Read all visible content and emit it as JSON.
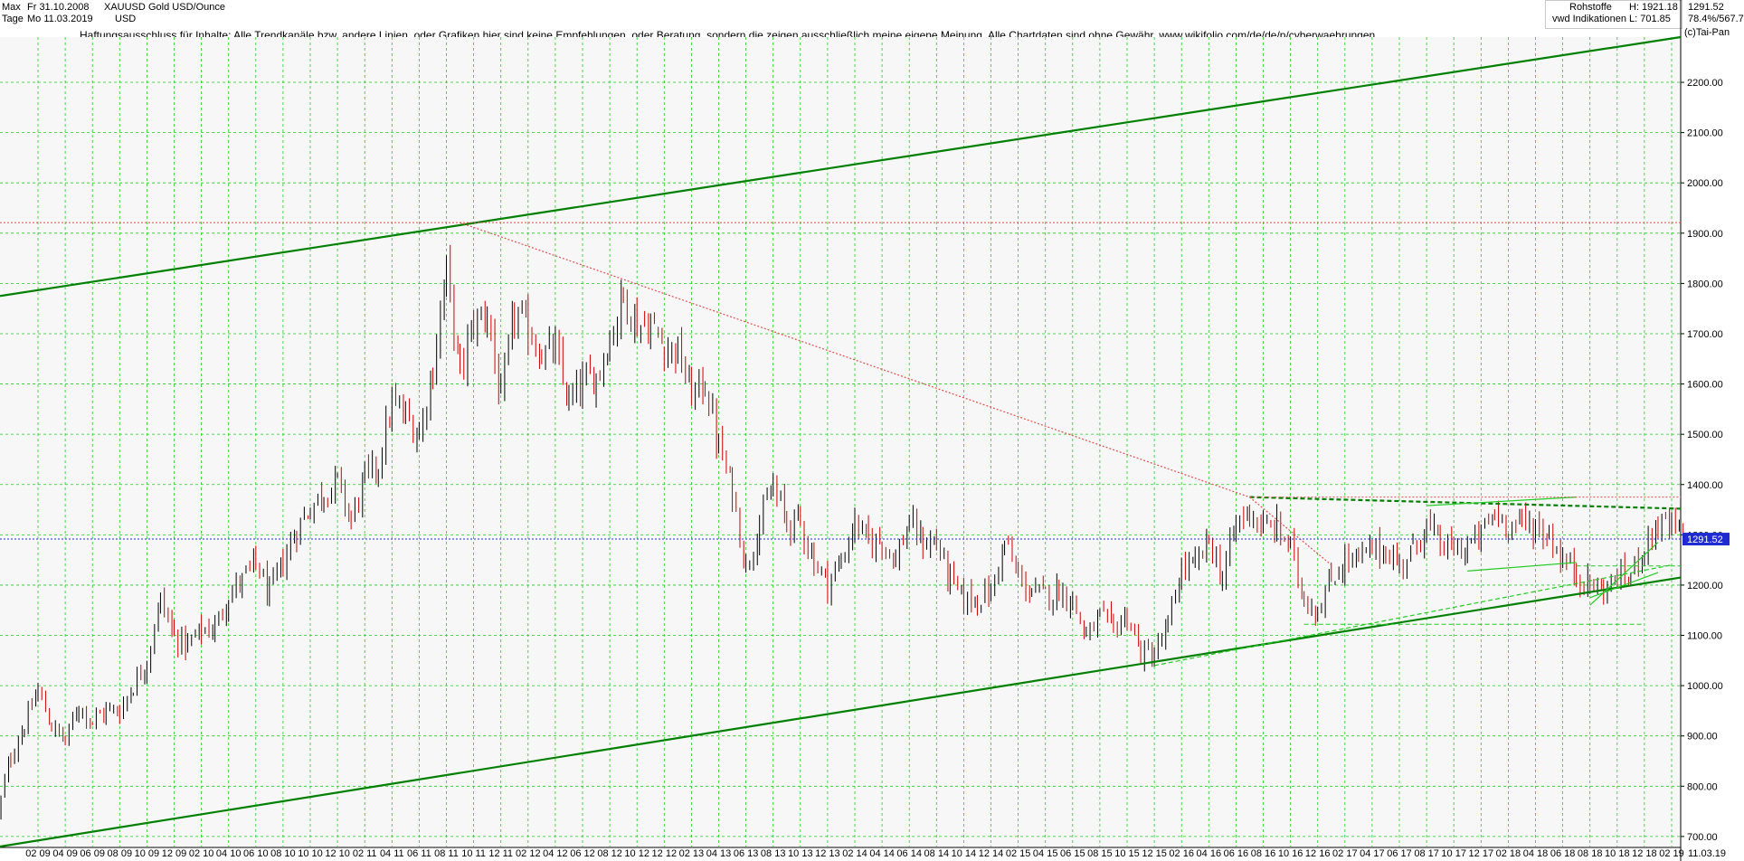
{
  "header": {
    "range_label": "Max",
    "interval_label": "Tage",
    "date_from": "Fr 31.10.2008",
    "date_to": "Mo 11.03.2019",
    "symbol": "XAUUSD",
    "currency": "USD",
    "instrument_name": "Gold USD/Ounce",
    "category": "Rohstoffe",
    "source": "vwd Indikationen",
    "high": "H: 1921.18",
    "low": "L: 701.85",
    "last": "1291.52",
    "change": "78.4%/567.7",
    "copyright": "(c)Tai-Pan",
    "disclaimer": "Haftungsausschluss für Inhalte: Alle Trendkanäle bzw. andere Linien, oder Grafiken hier sind keine Empfehlungen, oder Beratung, sondern die zeigen ausschließlich meine eigene Meinung. Alle Chartdaten sind ohne Gewähr.  www.wikifolio.com/de/de/p/cyberwaehrungen"
  },
  "colors": {
    "up_candle": "#000000",
    "down_candle": "#cc0000",
    "trend_green": "#008000",
    "light_green": "#22cc22",
    "resistance_red": "#e05050",
    "current_price_blue": "#1f2bd1",
    "grid_green": "#22cc22",
    "plot_bg": "#f7f7f7"
  },
  "chart_data": {
    "type": "candlestick",
    "y_axis": {
      "ticks": [
        "700.00",
        "800.00",
        "900.00",
        "1000.00",
        "1100.00",
        "1200.00",
        "1300.00",
        "1400.00",
        "1500.00",
        "1600.00",
        "1700.00",
        "1800.00",
        "1900.00",
        "2000.00",
        "2100.00",
        "2200.00"
      ],
      "range": [
        680,
        2290
      ],
      "side": "right"
    },
    "x_axis": {
      "ticks": [
        "02 09",
        "04 09",
        "06 09",
        "08 09",
        "10 09",
        "12 09",
        "02 10",
        "04 10",
        "06 10",
        "08 10",
        "10 10",
        "12 10",
        "02 11",
        "04 11",
        "06 11",
        "08 11",
        "10 11",
        "12 11",
        "02 12",
        "04 12",
        "06 12",
        "08 12",
        "10 12",
        "12 12",
        "02 13",
        "04 13",
        "06 13",
        "08 13",
        "10 13",
        "12 13",
        "02 14",
        "04 14",
        "06 14",
        "08 14",
        "10 14",
        "12 14",
        "02 15",
        "04 15",
        "06 15",
        "08 15",
        "10 15",
        "12 15",
        "02 16",
        "04 16",
        "06 16",
        "08 16",
        "10 16",
        "12 16",
        "02 17",
        "04 17",
        "06 17",
        "08 17",
        "10 17",
        "12 17",
        "02 18",
        "04 18",
        "06 18",
        "08 18",
        "10 18",
        "12 18",
        "02 19"
      ],
      "end_label": "11.03.19"
    },
    "current_price": 1291.52,
    "price_path_monthly": [
      [
        "2008-11",
        740
      ],
      [
        "2008-12",
        860
      ],
      [
        "2009-01",
        920
      ],
      [
        "2009-02",
        990
      ],
      [
        "2009-03",
        920
      ],
      [
        "2009-04",
        890
      ],
      [
        "2009-05",
        960
      ],
      [
        "2009-06",
        930
      ],
      [
        "2009-07",
        950
      ],
      [
        "2009-08",
        950
      ],
      [
        "2009-09",
        1000
      ],
      [
        "2009-10",
        1050
      ],
      [
        "2009-11",
        1170
      ],
      [
        "2009-12",
        1100
      ],
      [
        "2010-01",
        1080
      ],
      [
        "2010-02",
        1110
      ],
      [
        "2010-03",
        1115
      ],
      [
        "2010-04",
        1180
      ],
      [
        "2010-05",
        1210
      ],
      [
        "2010-06",
        1245
      ],
      [
        "2010-07",
        1180
      ],
      [
        "2010-08",
        1245
      ],
      [
        "2010-09",
        1310
      ],
      [
        "2010-10",
        1355
      ],
      [
        "2010-11",
        1385
      ],
      [
        "2010-12",
        1405
      ],
      [
        "2011-01",
        1330
      ],
      [
        "2011-02",
        1410
      ],
      [
        "2011-03",
        1440
      ],
      [
        "2011-04",
        1560
      ],
      [
        "2011-05",
        1535
      ],
      [
        "2011-06",
        1500
      ],
      [
        "2011-07",
        1630
      ],
      [
        "2011-08",
        1825
      ],
      [
        "2011-09",
        1620
      ],
      [
        "2011-10",
        1720
      ],
      [
        "2011-11",
        1745
      ],
      [
        "2011-12",
        1565
      ],
      [
        "2012-01",
        1740
      ],
      [
        "2012-02",
        1710
      ],
      [
        "2012-03",
        1660
      ],
      [
        "2012-04",
        1665
      ],
      [
        "2012-05",
        1560
      ],
      [
        "2012-06",
        1600
      ],
      [
        "2012-07",
        1615
      ],
      [
        "2012-08",
        1690
      ],
      [
        "2012-09",
        1775
      ],
      [
        "2012-10",
        1720
      ],
      [
        "2012-11",
        1715
      ],
      [
        "2012-12",
        1675
      ],
      [
        "2013-01",
        1665
      ],
      [
        "2013-02",
        1580
      ],
      [
        "2013-03",
        1600
      ],
      [
        "2013-04",
        1475
      ],
      [
        "2013-05",
        1390
      ],
      [
        "2013-06",
        1235
      ],
      [
        "2013-07",
        1320
      ],
      [
        "2013-08",
        1395
      ],
      [
        "2013-09",
        1325
      ],
      [
        "2013-10",
        1325
      ],
      [
        "2013-11",
        1250
      ],
      [
        "2013-12",
        1205
      ],
      [
        "2014-01",
        1245
      ],
      [
        "2014-02",
        1325
      ],
      [
        "2014-03",
        1285
      ],
      [
        "2014-04",
        1290
      ],
      [
        "2014-05",
        1250
      ],
      [
        "2014-06",
        1325
      ],
      [
        "2014-07",
        1285
      ],
      [
        "2014-08",
        1285
      ],
      [
        "2014-09",
        1210
      ],
      [
        "2014-10",
        1170
      ],
      [
        "2014-11",
        1175
      ],
      [
        "2014-12",
        1185
      ],
      [
        "2015-01",
        1285
      ],
      [
        "2015-02",
        1215
      ],
      [
        "2015-03",
        1185
      ],
      [
        "2015-04",
        1180
      ],
      [
        "2015-05",
        1190
      ],
      [
        "2015-06",
        1170
      ],
      [
        "2015-07",
        1095
      ],
      [
        "2015-08",
        1135
      ],
      [
        "2015-09",
        1115
      ],
      [
        "2015-10",
        1140
      ],
      [
        "2015-11",
        1065
      ],
      [
        "2015-12",
        1060
      ],
      [
        "2016-01",
        1115
      ],
      [
        "2016-02",
        1235
      ],
      [
        "2016-03",
        1235
      ],
      [
        "2016-04",
        1290
      ],
      [
        "2016-05",
        1215
      ],
      [
        "2016-06",
        1320
      ],
      [
        "2016-07",
        1350
      ],
      [
        "2016-08",
        1310
      ],
      [
        "2016-09",
        1315
      ],
      [
        "2016-10",
        1275
      ],
      [
        "2016-11",
        1175
      ],
      [
        "2016-12",
        1150
      ],
      [
        "2017-01",
        1210
      ],
      [
        "2017-02",
        1250
      ],
      [
        "2017-03",
        1250
      ],
      [
        "2017-04",
        1270
      ],
      [
        "2017-05",
        1270
      ],
      [
        "2017-06",
        1240
      ],
      [
        "2017-07",
        1270
      ],
      [
        "2017-08",
        1320
      ],
      [
        "2017-09",
        1280
      ],
      [
        "2017-10",
        1270
      ],
      [
        "2017-11",
        1275
      ],
      [
        "2017-12",
        1300
      ],
      [
        "2018-01",
        1345
      ],
      [
        "2018-02",
        1320
      ],
      [
        "2018-03",
        1325
      ],
      [
        "2018-04",
        1315
      ],
      [
        "2018-05",
        1300
      ],
      [
        "2018-06",
        1250
      ],
      [
        "2018-07",
        1225
      ],
      [
        "2018-08",
        1200
      ],
      [
        "2018-09",
        1190
      ],
      [
        "2018-10",
        1215
      ],
      [
        "2018-11",
        1220
      ],
      [
        "2018-12",
        1280
      ],
      [
        "2019-01",
        1320
      ],
      [
        "2019-02",
        1315
      ],
      [
        "2019-03",
        1291.52
      ]
    ],
    "annotations": [
      {
        "kind": "trendline",
        "style": "solid",
        "color": "trend_green",
        "from": [
          "2008-10",
          1775
        ],
        "to": [
          "2019-03",
          2290
        ]
      },
      {
        "kind": "trendline",
        "style": "solid",
        "color": "trend_green",
        "from": [
          "2008-10",
          680
        ],
        "to": [
          "2019-03",
          1215
        ]
      },
      {
        "kind": "trendline",
        "style": "dashed",
        "color": "light_green",
        "from": [
          "2015-12",
          1040
        ],
        "to": [
          "2019-02",
          1240
        ]
      },
      {
        "kind": "trendline",
        "style": "dashed",
        "color": "trend_green",
        "from": [
          "2016-07",
          1375
        ],
        "to": [
          "2019-03",
          1352
        ]
      },
      {
        "kind": "trendline",
        "style": "solid",
        "color": "light_green",
        "from": [
          "2017-08",
          1358
        ],
        "to": [
          "2018-07",
          1375
        ]
      },
      {
        "kind": "trendline",
        "style": "solid",
        "color": "light_green",
        "from": [
          "2017-11",
          1228
        ],
        "to": [
          "2018-07",
          1245
        ]
      },
      {
        "kind": "trendline",
        "style": "solid",
        "color": "light_green",
        "from": [
          "2018-08",
          1160
        ],
        "to": [
          "2019-01",
          1285
        ]
      },
      {
        "kind": "trendline",
        "style": "solid",
        "color": "light_green",
        "from": [
          "2018-08",
          1175
        ],
        "to": [
          "2019-01",
          1225
        ]
      },
      {
        "kind": "horizontal",
        "style": "dashed",
        "color": "light_green",
        "value": 1238,
        "from": "2018-07"
      },
      {
        "kind": "horizontal",
        "style": "dashed",
        "color": "light_green",
        "value": 1122,
        "from": "2016-11",
        "to": "2018-12"
      },
      {
        "kind": "horizontal",
        "style": "dotted",
        "color": "resistance_red",
        "value": 1921
      },
      {
        "kind": "horizontal",
        "style": "dotted",
        "color": "resistance_red",
        "value": 1375,
        "from": "2016-07"
      },
      {
        "kind": "trendline",
        "style": "dotted",
        "color": "resistance_red",
        "from": [
          "2011-09",
          1921
        ],
        "to": [
          "2016-07",
          1375
        ]
      },
      {
        "kind": "trendline",
        "style": "dotted",
        "color": "resistance_red",
        "from": [
          "2016-07",
          1375
        ],
        "to": [
          "2017-01",
          1240
        ]
      },
      {
        "kind": "horizontal",
        "style": "dotted",
        "color": "current_price_blue",
        "value": 1291.52
      }
    ]
  }
}
